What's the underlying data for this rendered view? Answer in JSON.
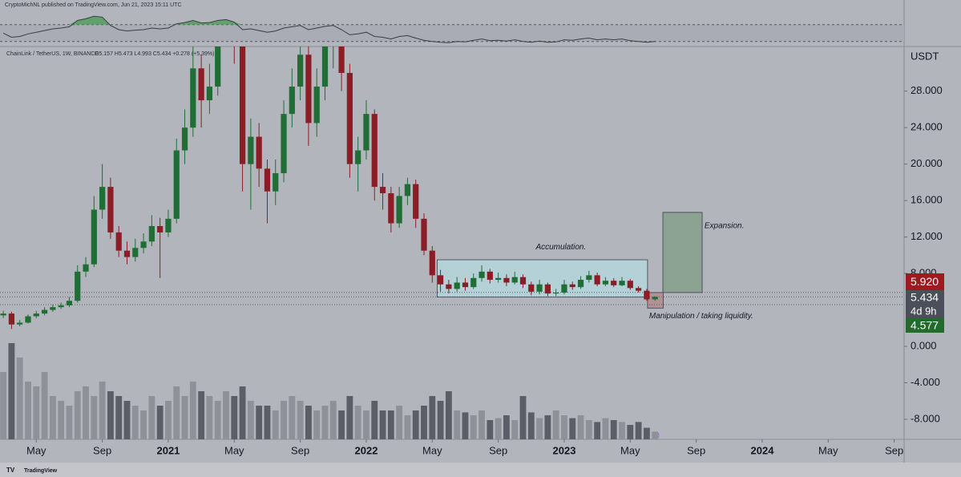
{
  "header": "CryptoMichNL published on TradingView.com, Jun 21, 2023 15:11 UTC",
  "footer_brand": "TradingView",
  "chart_data": {
    "type": "candlestick",
    "symbol_legend": "ChainLink / TetherUS, 1W, BINANCE",
    "ohlc_legend": "O5.157 H5.473 L4.993 C5.434 +0.278 (+5.39%)",
    "currency": "USDT",
    "x": [
      2,
      2.5,
      3,
      3.5,
      4,
      4.5,
      5,
      5.5,
      6,
      6.5,
      7,
      7.5,
      8,
      8.5,
      9,
      9.5,
      10,
      10.5,
      11,
      11.5,
      12,
      12.5,
      13,
      13.5,
      14,
      14.5,
      15,
      15.5,
      16,
      16.5,
      17,
      17.5,
      18,
      18.5,
      19,
      19.5,
      20,
      20.5,
      21,
      21.5,
      22,
      22.5,
      23,
      23.5,
      24,
      24.5,
      25,
      25.5,
      26,
      26.5,
      27,
      27.5,
      28,
      28.5,
      29,
      29.5,
      30,
      30.5,
      31,
      31.5,
      32,
      32.5,
      33,
      33.5,
      34,
      34.5,
      35,
      35.5,
      36,
      36.5,
      37,
      37.5,
      38,
      38.5,
      39,
      39.5,
      40,
      40.5,
      41,
      41.5
    ],
    "open": [
      3.4,
      3.6,
      2.4,
      2.6,
      3.3,
      3.6,
      4.0,
      4.3,
      4.5,
      5.0,
      8.2,
      9.0,
      15.0,
      17.5,
      12.5,
      10.5,
      9.8,
      10.8,
      11.5,
      13.2,
      12.5,
      14.0,
      21.5,
      24.0,
      30.5,
      27.0,
      28.5,
      35.0,
      38.0,
      34.0,
      20.0,
      23.0,
      19.5,
      17.0,
      19.0,
      25.5,
      28.5,
      32.0,
      24.5,
      28.5,
      33.0,
      36.0,
      30.0,
      20.0,
      21.5,
      25.5,
      17.5,
      16.8,
      13.5,
      16.5,
      17.8,
      14.0,
      10.5,
      7.8,
      6.8,
      6.3,
      7.0,
      6.5,
      7.5,
      8.2,
      7.3,
      7.5,
      7.0,
      7.6,
      6.8,
      6.0,
      6.8,
      5.8,
      5.9,
      6.8,
      6.5,
      7.3,
      7.8,
      6.8,
      7.2,
      6.7,
      7.2,
      6.4,
      6.1,
      5.157
    ],
    "high": [
      3.9,
      3.8,
      2.9,
      3.5,
      3.9,
      4.3,
      4.6,
      4.8,
      5.4,
      8.9,
      9.8,
      16.5,
      20.0,
      18.5,
      13.2,
      11.5,
      11.8,
      12.4,
      14.4,
      14.1,
      15.0,
      22.8,
      26.0,
      33.0,
      32.0,
      31.0,
      38.0,
      41.0,
      40.0,
      35.0,
      25.0,
      24.5,
      20.5,
      20.5,
      27.0,
      30.5,
      34.5,
      33.0,
      30.5,
      35.0,
      38.5,
      37.0,
      31.0,
      23.0,
      27.0,
      26.0,
      19.0,
      17.5,
      17.5,
      18.5,
      18.3,
      14.6,
      11.0,
      8.4,
      7.3,
      7.6,
      7.5,
      8.0,
      8.9,
      8.5,
      8.1,
      7.9,
      8.2,
      7.9,
      7.1,
      7.3,
      7.0,
      6.3,
      7.3,
      7.1,
      7.7,
      8.3,
      8.1,
      7.6,
      7.5,
      7.6,
      7.4,
      6.6,
      6.3,
      5.473
    ],
    "low": [
      3.1,
      1.9,
      2.2,
      2.5,
      3.1,
      3.4,
      3.8,
      4.1,
      4.3,
      4.8,
      7.6,
      8.7,
      14.0,
      11.8,
      9.8,
      9.0,
      9.3,
      10.2,
      11.0,
      7.5,
      12.0,
      13.5,
      20.0,
      23.0,
      24.0,
      25.5,
      27.5,
      33.0,
      31.0,
      17.0,
      15.0,
      17.5,
      13.5,
      15.5,
      18.0,
      24.0,
      27.0,
      22.0,
      23.0,
      27.0,
      30.5,
      28.0,
      18.5,
      17.0,
      20.5,
      16.0,
      15.0,
      12.5,
      13.0,
      15.5,
      13.0,
      10.0,
      7.0,
      6.0,
      5.8,
      6.0,
      6.1,
      6.3,
      7.1,
      6.9,
      7.0,
      6.6,
      6.8,
      6.4,
      5.6,
      5.7,
      5.5,
      5.5,
      5.7,
      6.2,
      6.3,
      7.0,
      6.6,
      6.6,
      6.5,
      6.6,
      6.2,
      5.9,
      5.0,
      4.993
    ],
    "close": [
      3.6,
      2.4,
      2.6,
      3.3,
      3.6,
      4.0,
      4.3,
      4.5,
      5.0,
      8.2,
      9.0,
      15.0,
      17.5,
      12.5,
      10.5,
      9.8,
      10.8,
      11.5,
      13.2,
      12.5,
      14.0,
      21.5,
      24.0,
      30.5,
      27.0,
      28.5,
      35.0,
      38.0,
      34.0,
      20.0,
      23.0,
      19.5,
      17.0,
      19.0,
      25.5,
      28.5,
      32.0,
      24.5,
      28.5,
      33.0,
      36.0,
      30.0,
      20.0,
      21.5,
      25.5,
      17.5,
      16.8,
      13.5,
      16.5,
      17.8,
      14.0,
      10.5,
      7.8,
      6.8,
      6.3,
      7.0,
      6.5,
      7.5,
      8.2,
      7.3,
      7.5,
      7.0,
      7.6,
      6.8,
      6.0,
      6.8,
      5.8,
      5.9,
      6.8,
      6.5,
      7.3,
      7.8,
      6.8,
      7.2,
      6.7,
      7.2,
      6.4,
      6.1,
      5.157,
      5.434
    ],
    "volume": [
      70,
      100,
      85,
      60,
      55,
      70,
      45,
      40,
      35,
      50,
      55,
      45,
      60,
      50,
      45,
      40,
      35,
      30,
      45,
      35,
      40,
      55,
      45,
      60,
      50,
      45,
      40,
      50,
      45,
      55,
      40,
      35,
      35,
      30,
      40,
      45,
      40,
      35,
      30,
      35,
      40,
      30,
      45,
      35,
      30,
      40,
      30,
      30,
      35,
      25,
      30,
      35,
      45,
      40,
      50,
      30,
      28,
      25,
      30,
      20,
      22,
      25,
      20,
      45,
      28,
      22,
      25,
      30,
      25,
      22,
      25,
      20,
      18,
      22,
      20,
      18,
      15,
      18,
      12,
      8
    ],
    "volume_lim": [
      0,
      100
    ],
    "rsi": [
      50,
      40,
      42,
      48,
      52,
      56,
      60,
      62,
      65,
      80,
      84,
      90,
      88,
      68,
      58,
      55,
      57,
      58,
      62,
      60,
      62,
      72,
      75,
      80,
      74,
      75,
      80,
      82,
      76,
      58,
      60,
      56,
      52,
      55,
      62,
      65,
      68,
      58,
      62,
      66,
      68,
      58,
      46,
      48,
      52,
      42,
      40,
      36,
      42,
      44,
      38,
      33,
      30,
      28,
      27,
      30,
      29,
      33,
      36,
      32,
      33,
      31,
      34,
      30,
      28,
      31,
      28,
      29,
      34,
      33,
      36,
      38,
      34,
      36,
      34,
      36,
      32,
      30,
      28,
      30
    ],
    "rsi_lim": [
      20,
      100
    ],
    "rsi_levels": [
      70,
      30
    ],
    "up_color": "#1f6e36",
    "down_color": "#8c1d26",
    "volume_up_color": "#8e9198",
    "volume_down_color": "#5b5e66",
    "rsi_color": "#3a3d45",
    "rsi_overbought_color": "#3f9a4a",
    "xlim": [
      1.8,
      56.6
    ],
    "xticks": [
      {
        "value": 4,
        "label": "May"
      },
      {
        "value": 8,
        "label": "Sep"
      },
      {
        "value": 12,
        "label": "2021"
      },
      {
        "value": 16,
        "label": "May"
      },
      {
        "value": 20,
        "label": "Sep"
      },
      {
        "value": 24,
        "label": "2022"
      },
      {
        "value": 28,
        "label": "May"
      },
      {
        "value": 32,
        "label": "Sep"
      },
      {
        "value": 36,
        "label": "2023"
      },
      {
        "value": 40,
        "label": "May"
      },
      {
        "value": 44,
        "label": "Sep"
      },
      {
        "value": 48,
        "label": "2024"
      },
      {
        "value": 52,
        "label": "May"
      },
      {
        "value": 56,
        "label": "Sep"
      }
    ],
    "ylim": [
      -10.2,
      32.9
    ],
    "yticks": [
      {
        "value": 28,
        "label": "28.000"
      },
      {
        "value": 24,
        "label": "24.000"
      },
      {
        "value": 20,
        "label": "20.000"
      },
      {
        "value": 16,
        "label": "16.000"
      },
      {
        "value": 12,
        "label": "12.000"
      },
      {
        "value": 8,
        "label": "8.000"
      },
      {
        "value": 0,
        "label": "0.000"
      },
      {
        "value": -4,
        "label": "-4.000"
      },
      {
        "value": -8,
        "label": "-8.000"
      }
    ],
    "price_labels": [
      {
        "value": 5.92,
        "label": "5.920",
        "color": "#9b1b21"
      },
      {
        "value": 5.434,
        "label": "5.434",
        "color": "#4b4f59"
      },
      {
        "value": 4.577,
        "label": "4.577",
        "color": "#236b2c"
      }
    ],
    "countdown": "4d 9h",
    "zones": [
      {
        "x": [
          28.3,
          41.05
        ],
        "y": [
          5.4,
          9.5
        ],
        "color": "#b4dbe0"
      },
      {
        "x": [
          41.98,
          44.36
        ],
        "y": [
          5.9,
          14.7
        ],
        "color": "#7f9d85"
      },
      {
        "x": [
          41.05,
          42.0
        ],
        "y": [
          4.2,
          5.9
        ],
        "color": "#b0868a"
      }
    ],
    "annotations": [
      {
        "text": "Accumulation.",
        "x": 35.8,
        "y": 10.9
      },
      {
        "text": "Expansion.",
        "x": 45.7,
        "y": 13.2
      },
      {
        "text": "Manipulation / taking liquidity.",
        "x": 44.3,
        "y": 3.3
      }
    ]
  }
}
